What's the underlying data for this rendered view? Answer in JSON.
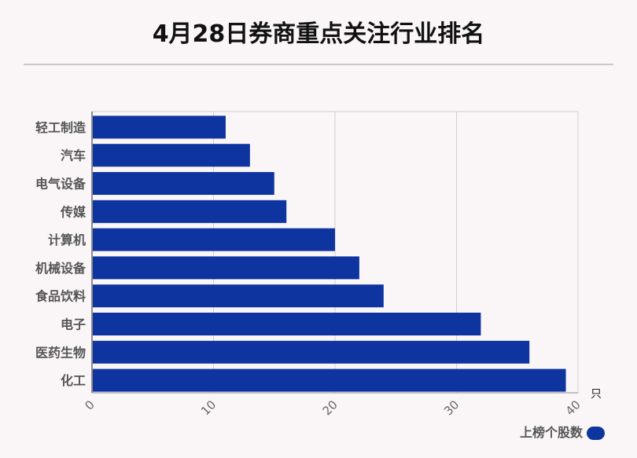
{
  "title": "4月28日券商重点关注行业排名",
  "chart_data": {
    "type": "bar",
    "orientation": "horizontal",
    "categories": [
      "轻工制造",
      "汽车",
      "电气设备",
      "传媒",
      "计算机",
      "机械设备",
      "食品饮料",
      "电子",
      "医药生物",
      "化工"
    ],
    "series": [
      {
        "name": "上榜个股数",
        "values": [
          11,
          13,
          15,
          16,
          20,
          22,
          24,
          32,
          36,
          39
        ],
        "color": "#0e34a0"
      }
    ],
    "xlim": [
      0,
      40
    ],
    "xticks": [
      0,
      10,
      20,
      30,
      40
    ],
    "x_unit": "只",
    "grid": true,
    "legend_position": "bottom-right"
  }
}
